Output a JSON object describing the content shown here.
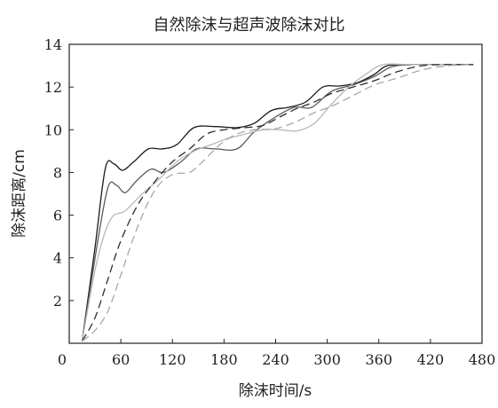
{
  "chart_data": {
    "type": "line",
    "title": "自然除沫与超声波除沫对比",
    "xlabel": "除沫时间/s",
    "ylabel": "除沫距离/cm",
    "xlim": [
      0,
      480
    ],
    "ylim": [
      0,
      14
    ],
    "xticks": [
      0,
      60,
      120,
      180,
      240,
      300,
      360,
      420,
      480
    ],
    "yticks": [
      2,
      4,
      6,
      8,
      10,
      12,
      14
    ],
    "grid": false,
    "series": [
      {
        "style": "solid",
        "color": "#1a1a1a",
        "points": [
          [
            15,
            0.1
          ],
          [
            30,
            4.5
          ],
          [
            42,
            8.2
          ],
          [
            52,
            8.4
          ],
          [
            62,
            8.1
          ],
          [
            75,
            8.5
          ],
          [
            92,
            9.1
          ],
          [
            108,
            9.1
          ],
          [
            125,
            9.3
          ],
          [
            145,
            10.1
          ],
          [
            170,
            10.15
          ],
          [
            195,
            10.1
          ],
          [
            215,
            10.3
          ],
          [
            235,
            10.9
          ],
          [
            255,
            11.05
          ],
          [
            275,
            11.3
          ],
          [
            295,
            12.0
          ],
          [
            315,
            12.05
          ],
          [
            335,
            12.2
          ],
          [
            355,
            12.6
          ],
          [
            370,
            13.0
          ],
          [
            400,
            13.05
          ],
          [
            440,
            13.05
          ],
          [
            470,
            13.05
          ]
        ]
      },
      {
        "style": "solid",
        "color": "#5a5a5a",
        "points": [
          [
            15,
            0.1
          ],
          [
            32,
            4.5
          ],
          [
            45,
            7.3
          ],
          [
            55,
            7.4
          ],
          [
            65,
            7.05
          ],
          [
            78,
            7.6
          ],
          [
            95,
            8.15
          ],
          [
            110,
            8.0
          ],
          [
            130,
            8.5
          ],
          [
            148,
            9.1
          ],
          [
            170,
            9.1
          ],
          [
            195,
            9.1
          ],
          [
            215,
            9.9
          ],
          [
            240,
            10.6
          ],
          [
            262,
            11.05
          ],
          [
            282,
            11.05
          ],
          [
            305,
            11.8
          ],
          [
            330,
            12.1
          ],
          [
            355,
            12.5
          ],
          [
            375,
            12.95
          ],
          [
            400,
            13.05
          ],
          [
            440,
            13.05
          ],
          [
            470,
            13.05
          ]
        ]
      },
      {
        "style": "solid",
        "color": "#b8b8b8",
        "points": [
          [
            15,
            0.1
          ],
          [
            32,
            3.8
          ],
          [
            48,
            5.8
          ],
          [
            65,
            6.2
          ],
          [
            85,
            7.0
          ],
          [
            105,
            7.7
          ],
          [
            125,
            8.5
          ],
          [
            145,
            9.0
          ],
          [
            165,
            9.3
          ],
          [
            185,
            9.6
          ],
          [
            205,
            9.8
          ],
          [
            225,
            10.0
          ],
          [
            245,
            10.0
          ],
          [
            265,
            9.95
          ],
          [
            285,
            10.3
          ],
          [
            305,
            11.2
          ],
          [
            325,
            12.0
          ],
          [
            345,
            12.6
          ],
          [
            365,
            13.05
          ],
          [
            400,
            13.05
          ],
          [
            440,
            13.05
          ],
          [
            470,
            13.05
          ]
        ]
      },
      {
        "style": "dashed",
        "color": "#2e2e2e",
        "points": [
          [
            15,
            0.1
          ],
          [
            30,
            1.2
          ],
          [
            45,
            3.0
          ],
          [
            60,
            4.8
          ],
          [
            80,
            6.5
          ],
          [
            100,
            7.6
          ],
          [
            120,
            8.5
          ],
          [
            140,
            9.1
          ],
          [
            160,
            9.8
          ],
          [
            180,
            10.0
          ],
          [
            205,
            10.1
          ],
          [
            225,
            10.2
          ],
          [
            245,
            10.6
          ],
          [
            265,
            11.0
          ],
          [
            285,
            11.3
          ],
          [
            305,
            11.7
          ],
          [
            330,
            12.0
          ],
          [
            355,
            12.3
          ],
          [
            380,
            12.7
          ],
          [
            410,
            13.0
          ],
          [
            440,
            13.05
          ],
          [
            470,
            13.05
          ]
        ]
      },
      {
        "style": "dashed",
        "color": "#a8a8a8",
        "points": [
          [
            15,
            0.1
          ],
          [
            30,
            0.6
          ],
          [
            45,
            1.5
          ],
          [
            60,
            3.2
          ],
          [
            80,
            5.5
          ],
          [
            100,
            7.2
          ],
          [
            120,
            7.9
          ],
          [
            140,
            8.0
          ],
          [
            155,
            8.5
          ],
          [
            175,
            9.3
          ],
          [
            195,
            9.8
          ],
          [
            215,
            10.0
          ],
          [
            240,
            10.05
          ],
          [
            265,
            10.4
          ],
          [
            285,
            10.8
          ],
          [
            305,
            11.1
          ],
          [
            330,
            11.6
          ],
          [
            355,
            12.1
          ],
          [
            380,
            12.4
          ],
          [
            410,
            12.8
          ],
          [
            440,
            13.0
          ],
          [
            470,
            13.05
          ]
        ]
      }
    ]
  }
}
